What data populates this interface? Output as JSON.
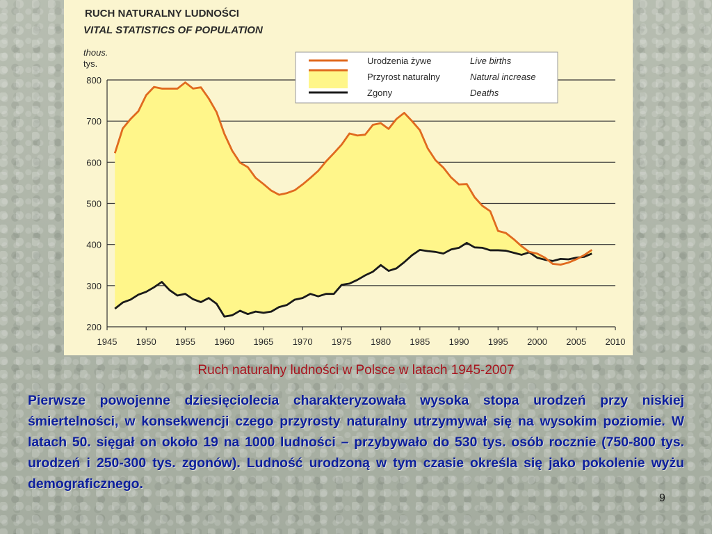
{
  "chart_data": {
    "type": "area",
    "title": "RUCH NATURALNY LUDNOŚCI",
    "subtitle": "VITAL STATISTICS OF POPULATION",
    "units": [
      "thous.",
      "tys."
    ],
    "xlim": [
      1945,
      2010
    ],
    "ylim": [
      200,
      800
    ],
    "x_ticks": [
      1945,
      1950,
      1955,
      1960,
      1965,
      1970,
      1975,
      1980,
      1985,
      1990,
      1995,
      2000,
      2005,
      2010
    ],
    "y_ticks": [
      200,
      300,
      400,
      500,
      600,
      700,
      800
    ],
    "grid": "horizontal",
    "legend_position": "top-right",
    "legend": [
      {
        "label_pl": "Urodzenia żywe",
        "label_en": "Live births",
        "color": "#e06a1f",
        "style": "line"
      },
      {
        "label_pl": "Przyrost naturalny",
        "label_en": "Natural increase",
        "color": "#fff68a",
        "style": "fill"
      },
      {
        "label_pl": "Zgony",
        "label_en": "Deaths",
        "color": "#1a1a1a",
        "style": "line"
      }
    ],
    "x": [
      1946,
      1947,
      1948,
      1949,
      1950,
      1951,
      1952,
      1953,
      1954,
      1955,
      1956,
      1957,
      1958,
      1959,
      1960,
      1961,
      1962,
      1963,
      1964,
      1965,
      1966,
      1967,
      1968,
      1969,
      1970,
      1971,
      1972,
      1973,
      1974,
      1975,
      1976,
      1977,
      1978,
      1979,
      1980,
      1981,
      1982,
      1983,
      1984,
      1985,
      1986,
      1987,
      1988,
      1989,
      1990,
      1991,
      1992,
      1993,
      1994,
      1995,
      1996,
      1997,
      1998,
      1999,
      2000,
      2001,
      2002,
      2003,
      2004,
      2005,
      2006,
      2007
    ],
    "series": [
      {
        "name": "Urodzenia żywe",
        "values": [
          622,
          682,
          705,
          724,
          763,
          783,
          779,
          779,
          779,
          794,
          779,
          782,
          755,
          722,
          669,
          628,
          599,
          588,
          562,
          547,
          531,
          521,
          525,
          532,
          546,
          562,
          579,
          602,
          622,
          643,
          670,
          665,
          667,
          691,
          695,
          681,
          705,
          720,
          700,
          678,
          634,
          605,
          587,
          563,
          546,
          547,
          515,
          494,
          481,
          433,
          428,
          413,
          396,
          382,
          378,
          368,
          353,
          351,
          356,
          364,
          374,
          387
        ]
      },
      {
        "name": "Zgony",
        "values": [
          244,
          259,
          266,
          278,
          285,
          296,
          309,
          289,
          276,
          280,
          267,
          260,
          270,
          256,
          225,
          228,
          239,
          231,
          237,
          234,
          237,
          248,
          253,
          266,
          270,
          280,
          274,
          280,
          280,
          302,
          305,
          314,
          325,
          334,
          350,
          336,
          342,
          357,
          374,
          387,
          384,
          382,
          378,
          388,
          392,
          404,
          393,
          392,
          386,
          386,
          385,
          380,
          375,
          381,
          368,
          363,
          360,
          365,
          364,
          368,
          370,
          378
        ]
      }
    ]
  },
  "caption": "Ruch naturalny ludności w Polsce w latach 1945-2007",
  "body_text": "Pierwsze powojenne dziesięciolecia charakteryzowała wysoka stopa urodzeń przy niskiej śmiertelności, w konsekwencji czego przyrosty naturalny utrzymywał się na wysokim poziomie. W latach 50. sięgał on około 19 na 1000 ludności – przybywało do 530 tys. osób rocznie (750-800 tys. urodzeń i 250-300 tys. zgonów). Ludność urodzoną w tym czasie określa się jako pokolenie wyżu demograficznego.",
  "page_number": "9"
}
